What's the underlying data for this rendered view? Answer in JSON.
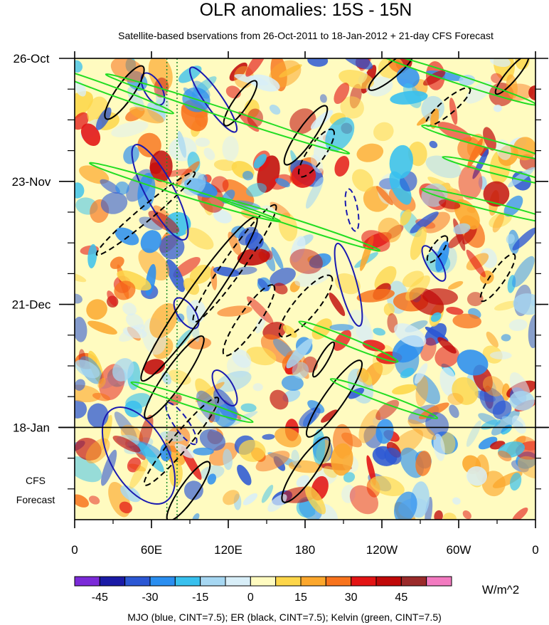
{
  "chart_data": {
    "type": "heatmap",
    "title": "OLR anomalies: 15S - 15N",
    "subtitle": "Satellite-based bservations from 26-Oct-2011 to 18-Jan-2012 + 21-day CFS Forecast",
    "x_axis": {
      "ticks": [
        {
          "lon": 0,
          "label": "0"
        },
        {
          "lon": 60,
          "label": "60E"
        },
        {
          "lon": 120,
          "label": "120E"
        },
        {
          "lon": 180,
          "label": "180"
        },
        {
          "lon": 240,
          "label": "120W"
        },
        {
          "lon": 300,
          "label": "60W"
        },
        {
          "lon": 360,
          "label": "0"
        }
      ],
      "range": [
        0,
        360
      ]
    },
    "y_axis": {
      "ticks": [
        {
          "date": "2011-10-26",
          "label": "26-Oct"
        },
        {
          "date": "2011-11-23",
          "label": "23-Nov"
        },
        {
          "date": "2011-12-21",
          "label": "21-Dec"
        },
        {
          "date": "2012-01-18",
          "label": "18-Jan"
        }
      ],
      "range": [
        "2011-10-26",
        "2012-02-08"
      ],
      "reversed": true
    },
    "forecast_line_date": "2012-01-18",
    "forecast_label": [
      "CFS",
      "Forecast"
    ],
    "colorbar": {
      "colors": [
        "#7b2ad8",
        "#1a1aa6",
        "#2b57d4",
        "#2a8ef0",
        "#38c0ee",
        "#a6d7f2",
        "#d8eef8",
        "#fffbc0",
        "#fdd64a",
        "#fca72c",
        "#f8731c",
        "#e31414",
        "#c00909",
        "#9a2a2a",
        "#f27ac0"
      ],
      "tick_labels": [
        "-45",
        "-30",
        "-15",
        "0",
        "15",
        "30",
        "45"
      ],
      "tick_values": [
        -45,
        -30,
        -15,
        0,
        15,
        30,
        45
      ],
      "units": "W/m^2"
    },
    "footnote": "MJO (blue, CINT=7.5); ER (black, CINT=7.5); Kelvin (green, CINT=7.5)",
    "reference_lines": {
      "lons": [
        72,
        80
      ],
      "color": "#1a8a2a",
      "style": "dotted"
    },
    "mjo_color": "#1a1ab0",
    "er_color": "#000000",
    "kelvin_color": "#22dd22"
  }
}
